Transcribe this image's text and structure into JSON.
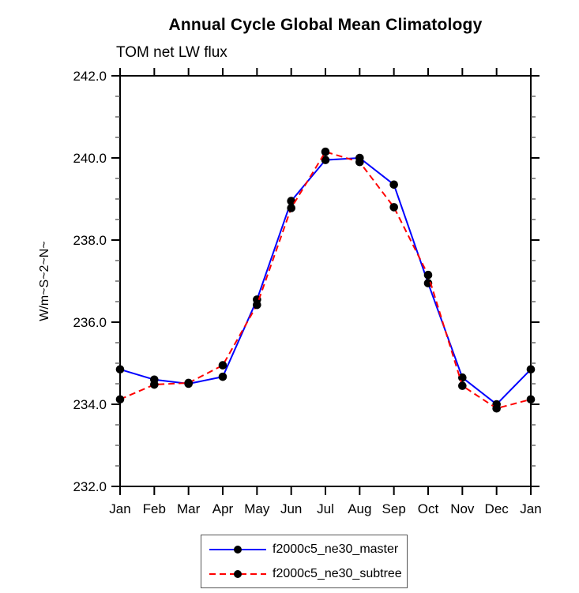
{
  "chart_data": {
    "type": "line",
    "title": "Annual Cycle Global Mean Climatology",
    "subtitle": "TOM net LW flux",
    "ylabel": "W/m~S~2~N~",
    "xlabel": "",
    "categories": [
      "Jan",
      "Feb",
      "Mar",
      "Apr",
      "May",
      "Jun",
      "Jul",
      "Aug",
      "Sep",
      "Oct",
      "Nov",
      "Dec",
      "Jan"
    ],
    "ylim": [
      232.0,
      242.0
    ],
    "ytick_major": [
      232.0,
      234.0,
      236.0,
      238.0,
      240.0,
      242.0
    ],
    "ytick_labels": [
      "232.0",
      "234.0",
      "236.0",
      "238.0",
      "240.0",
      "242.0"
    ],
    "ytick_minor_step": 0.5,
    "grid": false,
    "legend_position": "bottom-center-boxed",
    "axis_color": "#000000",
    "minor_tick_color": "#555555",
    "series": [
      {
        "name": "f2000c5_ne30_master",
        "color": "#0000ff",
        "style": "solid",
        "marker": "filled-circle",
        "marker_color": "#000000",
        "values": [
          234.85,
          234.6,
          234.5,
          234.67,
          236.55,
          238.95,
          239.95,
          240.0,
          239.35,
          236.95,
          234.65,
          234.0,
          234.85
        ]
      },
      {
        "name": "f2000c5_ne30_subtree",
        "color": "#ff0000",
        "style": "dashed",
        "marker": "filled-circle",
        "marker_color": "#000000",
        "values": [
          234.12,
          234.48,
          234.52,
          234.95,
          236.42,
          238.78,
          240.15,
          239.9,
          238.8,
          237.15,
          234.45,
          233.9,
          234.12
        ]
      }
    ]
  }
}
